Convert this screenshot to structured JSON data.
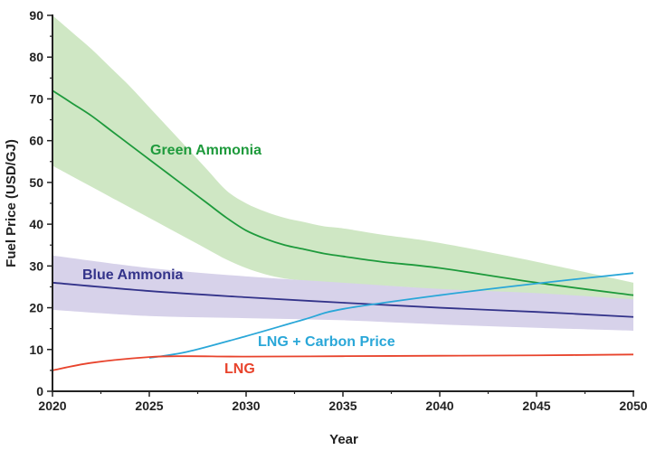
{
  "chart_data": {
    "type": "line",
    "xlabel": "Year",
    "ylabel": "Fuel Price (USD/GJ)",
    "xlim": [
      2020,
      2050
    ],
    "ylim": [
      0,
      90
    ],
    "xticks": [
      2020,
      2025,
      2030,
      2035,
      2040,
      2045,
      2050
    ],
    "yticks": [
      0,
      10,
      20,
      30,
      40,
      50,
      60,
      70,
      80,
      90
    ],
    "grid": false,
    "legend": "none (direct labels on series)",
    "colors": {
      "green": "#1e9a3c",
      "green_band": "#cfe7c4",
      "blue": "#33338a",
      "blue_band": "#d7d2ea",
      "cyan": "#2aa7d8",
      "red": "#e8432c",
      "axis": "#222222"
    },
    "series": [
      {
        "name": "Green Ammonia",
        "label": "Green Ammonia",
        "color_key": "green",
        "x": [
          2020,
          2021,
          2022,
          2023,
          2024,
          2025,
          2026,
          2027,
          2028,
          2029,
          2030,
          2031,
          2032,
          2033,
          2034,
          2035,
          2037,
          2040,
          2045,
          2050
        ],
        "y": [
          72,
          69,
          66,
          62.5,
          59,
          55.5,
          52,
          48.5,
          45,
          41.5,
          38.5,
          36.5,
          35,
          34,
          33,
          32.3,
          31,
          29.5,
          26,
          23
        ],
        "band_upper": [
          90,
          86,
          82,
          77.5,
          73,
          68,
          63,
          58,
          53,
          48,
          45,
          43,
          41.5,
          40.5,
          39.5,
          39,
          37.5,
          35.5,
          31,
          26
        ],
        "band_lower": [
          54,
          51.5,
          49,
          46.5,
          44,
          41.5,
          39,
          36.5,
          34,
          31.5,
          29.5,
          28,
          27,
          26.5,
          26,
          25.8,
          25.3,
          24.3,
          22,
          20
        ]
      },
      {
        "name": "Blue Ammonia",
        "label": "Blue Ammonia",
        "color_key": "blue",
        "x": [
          2020,
          2025,
          2030,
          2035,
          2040,
          2045,
          2050
        ],
        "y": [
          26,
          24,
          22.5,
          21.2,
          20,
          19,
          17.8
        ],
        "band_upper": [
          32.5,
          29.5,
          27.5,
          26,
          24.5,
          23.5,
          22
        ],
        "band_lower": [
          19.5,
          18,
          17.5,
          17,
          16,
          15.2,
          14.5
        ]
      },
      {
        "name": "LNG + Carbon Price",
        "label": "LNG + Carbon Price",
        "color_key": "cyan",
        "x": [
          2025,
          2027,
          2030,
          2033,
          2035,
          2040,
          2045,
          2050
        ],
        "y": [
          8,
          9.5,
          13.2,
          17.2,
          19.7,
          23,
          25.8,
          28.3
        ]
      },
      {
        "name": "LNG",
        "label": "LNG",
        "color_key": "red",
        "x": [
          2020,
          2022,
          2025,
          2027,
          2030,
          2035,
          2040,
          2045,
          2050
        ],
        "y": [
          5,
          6.8,
          8.2,
          8.4,
          8.3,
          8.4,
          8.5,
          8.6,
          8.8
        ]
      }
    ]
  }
}
